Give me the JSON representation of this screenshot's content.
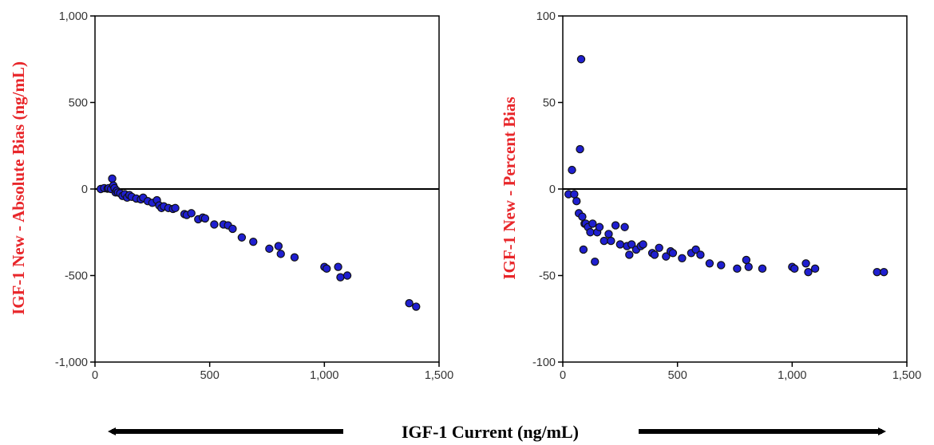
{
  "colors": {
    "ylabel": "#e8262a",
    "point_fill": "#1f1fd0",
    "point_stroke": "#111111",
    "axis": "#000000",
    "arrow": "#000000"
  },
  "shared_xlabel": "IGF-1 Current (ng/mL)",
  "chart_data": [
    {
      "type": "scatter",
      "ylabel": "IGF-1 New - Absolute Bias (ng/mL)",
      "xlim": [
        0,
        1500
      ],
      "ylim": [
        -1000,
        1000
      ],
      "xticks": [
        0,
        500,
        1000,
        1500
      ],
      "xtick_labels": [
        "0",
        "500",
        "1,000",
        "1,500"
      ],
      "yticks": [
        -1000,
        -500,
        0,
        500,
        1000
      ],
      "ytick_labels": [
        "-1,000",
        "-500",
        "0",
        "500",
        "1,000"
      ],
      "reference_line_y": 0,
      "x": [
        25,
        40,
        55,
        60,
        70,
        75,
        80,
        85,
        90,
        95,
        100,
        110,
        120,
        130,
        140,
        150,
        160,
        180,
        200,
        210,
        230,
        250,
        270,
        280,
        290,
        300,
        320,
        340,
        350,
        390,
        400,
        420,
        450,
        470,
        480,
        520,
        560,
        580,
        600,
        640,
        690,
        760,
        800,
        810,
        870,
        1000,
        1010,
        1060,
        1070,
        1100,
        1370,
        1400
      ],
      "y": [
        0,
        5,
        2,
        5,
        0,
        60,
        20,
        5,
        -20,
        -10,
        -20,
        -25,
        -40,
        -30,
        -50,
        -35,
        -45,
        -55,
        -60,
        -50,
        -70,
        -80,
        -65,
        -95,
        -110,
        -100,
        -110,
        -115,
        -110,
        -145,
        -150,
        -140,
        -175,
        -165,
        -170,
        -205,
        -205,
        -210,
        -230,
        -280,
        -305,
        -345,
        -330,
        -375,
        -395,
        -450,
        -460,
        -450,
        -510,
        -500,
        -660,
        -680
      ]
    },
    {
      "type": "scatter",
      "ylabel": "IGF-1 New - Percent Bias",
      "xlim": [
        0,
        1500
      ],
      "ylim": [
        -100,
        100
      ],
      "xticks": [
        0,
        500,
        1000,
        1500
      ],
      "xtick_labels": [
        "0",
        "500",
        "1,000",
        "1,500"
      ],
      "yticks": [
        -100,
        -50,
        0,
        50,
        100
      ],
      "ytick_labels": [
        "-100",
        "-50",
        "0",
        "50",
        "100"
      ],
      "reference_line_y": 0,
      "x": [
        25,
        40,
        50,
        60,
        70,
        75,
        80,
        85,
        90,
        95,
        100,
        110,
        120,
        130,
        140,
        150,
        160,
        180,
        200,
        210,
        230,
        250,
        270,
        280,
        290,
        300,
        320,
        340,
        350,
        390,
        400,
        420,
        450,
        470,
        480,
        520,
        560,
        580,
        600,
        640,
        690,
        760,
        800,
        810,
        870,
        1000,
        1010,
        1060,
        1070,
        1100,
        1370,
        1400
      ],
      "y": [
        -3,
        11,
        -3,
        -7,
        -14,
        23,
        75,
        -16,
        -35,
        -20,
        -20,
        -22,
        -25,
        -20,
        -42,
        -25,
        -22,
        -30,
        -26,
        -30,
        -21,
        -32,
        -22,
        -33,
        -38,
        -32,
        -35,
        -33,
        -32,
        -37,
        -38,
        -34,
        -39,
        -36,
        -37,
        -40,
        -37,
        -35,
        -38,
        -43,
        -44,
        -46,
        -41,
        -45,
        -46,
        -45,
        -46,
        -43,
        -48,
        -46,
        -48,
        -48
      ]
    }
  ]
}
